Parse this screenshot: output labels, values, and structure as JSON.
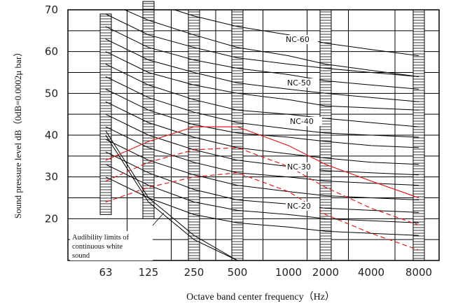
{
  "chart_data": {
    "type": "line",
    "title": "",
    "xlabel": "Octave band center frequency（Hz）",
    "ylabel": "Sound pressure level dB（0dB=0.0002μ bar）",
    "ylim": [
      10,
      70
    ],
    "yticks": [
      20,
      30,
      40,
      50,
      60,
      70
    ],
    "categories": [
      "63",
      "125",
      "250",
      "500",
      "1000",
      "2000",
      "4000",
      "8000"
    ],
    "grid": true,
    "nc_curves": [
      {
        "label": "",
        "values": [
          null,
          72,
          68.5,
          66,
          64,
          62,
          60.5,
          59
        ]
      },
      {
        "label": "",
        "values": [
          72,
          67.5,
          64,
          61,
          59,
          57,
          55.5,
          54
        ]
      },
      {
        "label": "NC-60",
        "values": [
          69,
          64,
          61,
          58.5,
          57,
          56,
          55,
          54
        ]
      },
      {
        "label": "",
        "values": [
          66,
          61,
          58,
          56,
          54.5,
          53,
          52,
          51
        ]
      },
      {
        "label": "",
        "values": [
          63,
          58,
          55,
          52.5,
          51,
          50,
          49,
          48
        ]
      },
      {
        "label": "NC-50",
        "values": [
          60,
          55,
          52,
          50,
          48.5,
          47,
          46.5,
          46
        ]
      },
      {
        "label": "",
        "values": [
          57,
          52,
          48.5,
          46,
          45,
          44,
          43,
          42
        ]
      },
      {
        "label": "",
        "values": [
          54,
          49,
          45.5,
          43,
          41.5,
          40.5,
          40,
          39.5
        ]
      },
      {
        "label": "NC-40",
        "values": [
          51,
          46,
          42.5,
          40.5,
          39.5,
          38.5,
          37.5,
          37
        ]
      },
      {
        "label": "",
        "values": [
          48,
          43,
          39.5,
          37,
          35.5,
          34.5,
          33.5,
          33
        ]
      },
      {
        "label": "",
        "values": [
          45,
          40,
          36.5,
          34,
          32.5,
          31.5,
          31,
          30.5
        ]
      },
      {
        "label": "NC-30",
        "values": [
          42,
          37,
          33.5,
          31,
          30,
          29,
          28.5,
          28
        ]
      },
      {
        "label": "",
        "values": [
          39,
          34,
          30.5,
          28,
          26.5,
          25.5,
          25,
          24.5
        ]
      },
      {
        "label": "",
        "values": [
          36,
          31,
          27,
          24.5,
          23.5,
          22.5,
          22,
          21.5
        ]
      },
      {
        "label": "NC-20",
        "values": [
          33,
          28,
          24,
          22,
          21,
          20,
          19.5,
          19
        ]
      },
      {
        "label": "",
        "values": [
          30,
          25,
          21,
          19,
          18,
          17,
          16.5,
          16
        ]
      }
    ],
    "red_curves": [
      {
        "style": "solid",
        "values": [
          34,
          38.5,
          42,
          42,
          37.5,
          33,
          29,
          25
        ]
      },
      {
        "style": "dashed",
        "values": [
          29,
          33.5,
          36.5,
          37,
          32.5,
          27.5,
          22.5,
          18.5
        ]
      },
      {
        "style": "dashed",
        "values": [
          24,
          27.5,
          30,
          31,
          26.5,
          21,
          16.5,
          12.5
        ]
      }
    ],
    "audibility_curves": [
      {
        "values": [
          41,
          25,
          16,
          10
        ]
      },
      {
        "values": [
          40,
          24,
          15,
          10
        ]
      }
    ],
    "hatched_bands": [
      "63",
      "125",
      "250",
      "500",
      "2000",
      "8000"
    ],
    "annotation": {
      "lines": [
        "Audibility limits of",
        "continuous white",
        "sound"
      ]
    }
  }
}
